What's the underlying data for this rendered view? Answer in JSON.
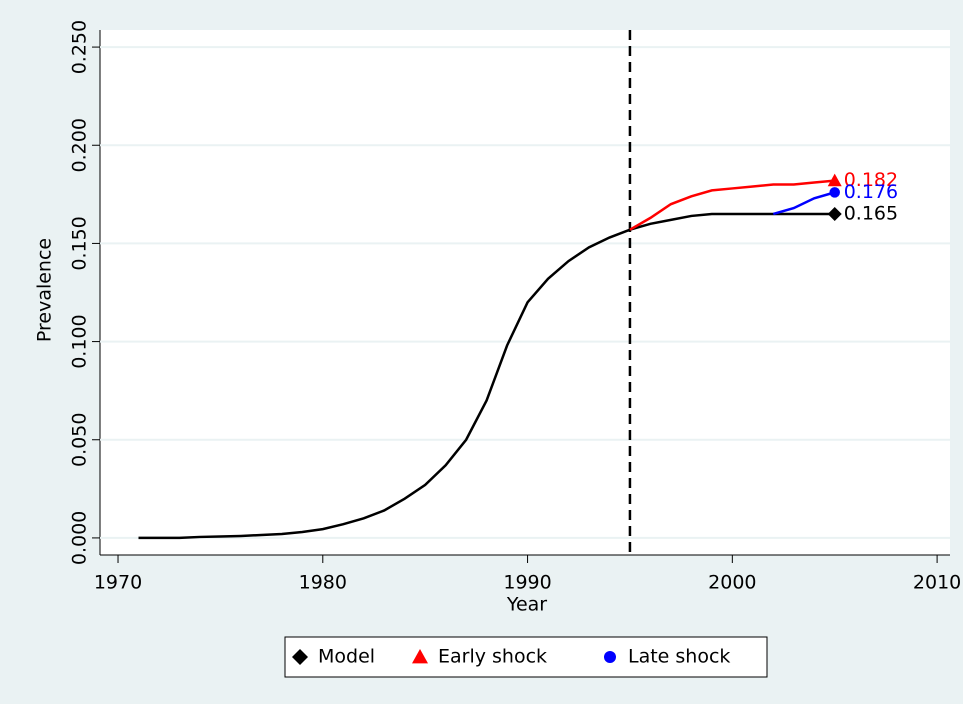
{
  "chart_data": {
    "type": "line",
    "x_label": "Year",
    "y_label": "Prevalence",
    "x": [
      1971,
      1972,
      1973,
      1974,
      1975,
      1976,
      1977,
      1978,
      1979,
      1980,
      1981,
      1982,
      1983,
      1984,
      1985,
      1986,
      1987,
      1988,
      1989,
      1990,
      1991,
      1992,
      1993,
      1994,
      1995,
      1996,
      1997,
      1998,
      1999,
      2000,
      2001,
      2002,
      2003,
      2004,
      2005
    ],
    "series": [
      {
        "name": "Model",
        "color": "#000000",
        "marker": "diamond",
        "values": [
          0,
          0,
          0,
          0.0005,
          0.0007,
          0.001,
          0.0015,
          0.002,
          0.003,
          0.0045,
          0.007,
          0.01,
          0.014,
          0.02,
          0.027,
          0.037,
          0.05,
          0.07,
          0.098,
          0.12,
          0.132,
          0.141,
          0.148,
          0.153,
          0.157,
          0.16,
          0.162,
          0.164,
          0.165,
          0.165,
          0.165,
          0.165,
          0.165,
          0.165,
          0.165
        ],
        "value_labels": [
          null,
          null,
          null,
          null,
          null,
          null,
          null,
          null,
          null,
          null,
          null,
          null,
          null,
          null,
          null,
          null,
          null,
          null,
          null,
          null,
          null,
          null,
          null,
          null,
          null,
          null,
          null,
          null,
          null,
          null,
          null,
          null,
          null,
          null,
          "0.165"
        ]
      },
      {
        "name": "Early shock",
        "color": "#ff0000",
        "marker": "triangle",
        "values": [
          null,
          null,
          null,
          null,
          null,
          null,
          null,
          null,
          null,
          null,
          null,
          null,
          null,
          null,
          null,
          null,
          null,
          null,
          null,
          null,
          null,
          null,
          null,
          null,
          0.157,
          0.163,
          0.17,
          0.174,
          0.177,
          0.178,
          0.179,
          0.18,
          0.18,
          0.181,
          0.182
        ],
        "value_labels": [
          null,
          null,
          null,
          null,
          null,
          null,
          null,
          null,
          null,
          null,
          null,
          null,
          null,
          null,
          null,
          null,
          null,
          null,
          null,
          null,
          null,
          null,
          null,
          null,
          null,
          null,
          null,
          null,
          null,
          null,
          null,
          null,
          null,
          null,
          "0.182"
        ]
      },
      {
        "name": "Late shock",
        "color": "#0000ff",
        "marker": "circle",
        "values": [
          null,
          null,
          null,
          null,
          null,
          null,
          null,
          null,
          null,
          null,
          null,
          null,
          null,
          null,
          null,
          null,
          null,
          null,
          null,
          null,
          null,
          null,
          null,
          null,
          null,
          null,
          null,
          null,
          null,
          null,
          null,
          0.165,
          0.168,
          0.173,
          0.176
        ],
        "value_labels": [
          null,
          null,
          null,
          null,
          null,
          null,
          null,
          null,
          null,
          null,
          null,
          null,
          null,
          null,
          null,
          null,
          null,
          null,
          null,
          null,
          null,
          null,
          null,
          null,
          null,
          null,
          null,
          null,
          null,
          null,
          null,
          null,
          null,
          null,
          "0.176"
        ]
      }
    ],
    "vline": 1995,
    "xlim": [
      1969.12,
      2010.63
    ],
    "xticks": [
      1970,
      1980,
      1990,
      2000,
      2010
    ],
    "ylim": [
      -0.0087,
      0.2587
    ],
    "yticks": [
      {
        "value": 0,
        "label": "0.000"
      },
      {
        "value": 0.05,
        "label": "0.050"
      },
      {
        "value": 0.1,
        "label": "0.100"
      },
      {
        "value": 0.15,
        "label": "0.150"
      },
      {
        "value": 0.2,
        "label": "0.200"
      },
      {
        "value": 0.25,
        "label": "0.250"
      }
    ],
    "grid": true,
    "legend": "bottom"
  }
}
